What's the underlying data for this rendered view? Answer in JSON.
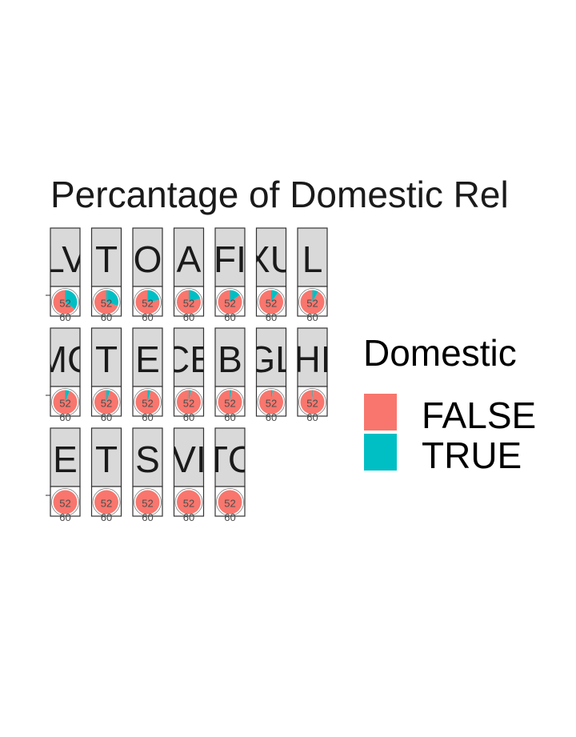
{
  "chart_data": {
    "type": "pie",
    "title": "Percantage of Domestic Rel",
    "facet_strips": [
      "LV",
      "T",
      "O",
      "A",
      "FI",
      "XU",
      "L",
      "MC",
      "T",
      "E",
      "CE",
      "B",
      "GL",
      "HI",
      "E",
      "T",
      "S",
      "VI",
      "TC"
    ],
    "theta_tick_labels": [
      "52",
      "60"
    ],
    "facets": [
      {
        "strip": "LV",
        "domestic_true_fraction": 0.35
      },
      {
        "strip": "T",
        "domestic_true_fraction": 0.3
      },
      {
        "strip": "O",
        "domestic_true_fraction": 0.22
      },
      {
        "strip": "A",
        "domestic_true_fraction": 0.2
      },
      {
        "strip": "FI",
        "domestic_true_fraction": 0.15
      },
      {
        "strip": "XU",
        "domestic_true_fraction": 0.1
      },
      {
        "strip": "L",
        "domestic_true_fraction": 0.08
      },
      {
        "strip": "MC",
        "domestic_true_fraction": 0.06
      },
      {
        "strip": "T",
        "domestic_true_fraction": 0.05
      },
      {
        "strip": "E",
        "domestic_true_fraction": 0.04
      },
      {
        "strip": "CE",
        "domestic_true_fraction": 0.03
      },
      {
        "strip": "B",
        "domestic_true_fraction": 0.02
      },
      {
        "strip": "GL",
        "domestic_true_fraction": 0.02
      },
      {
        "strip": "HI",
        "domestic_true_fraction": 0.01
      },
      {
        "strip": "E",
        "domestic_true_fraction": 0.0
      },
      {
        "strip": "T",
        "domestic_true_fraction": 0.0
      },
      {
        "strip": "S",
        "domestic_true_fraction": 0.0
      },
      {
        "strip": "VI",
        "domestic_true_fraction": 0.0
      },
      {
        "strip": "TC",
        "domestic_true_fraction": 0.0
      }
    ],
    "legend": {
      "title": "Domestic",
      "position": "right",
      "entries": [
        {
          "label": "FALSE",
          "color": "#F8766D"
        },
        {
          "label": "TRUE",
          "color": "#00BFC4"
        }
      ]
    },
    "colors": {
      "false": "#F8766D",
      "true": "#00BFC4",
      "strip_fill": "#D9D9D9",
      "panel_border": "#333333"
    }
  }
}
